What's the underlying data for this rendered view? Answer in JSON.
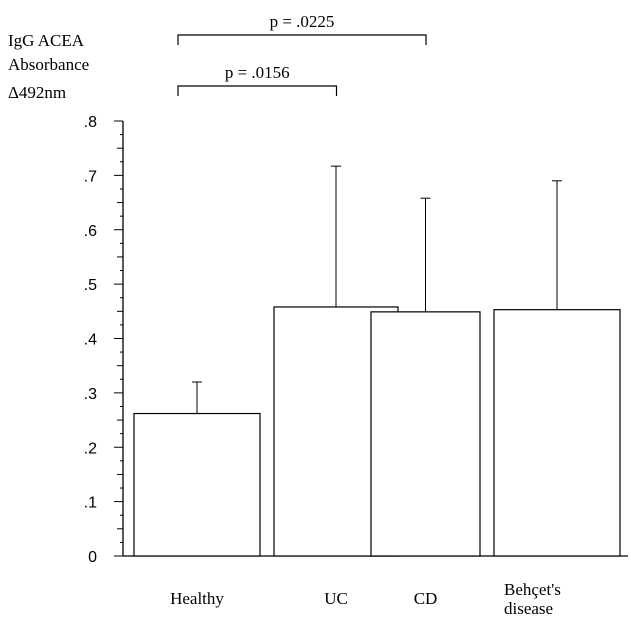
{
  "chart_data": {
    "type": "bar",
    "ylabel_lines": [
      "IgG ACEA",
      "Absorbance",
      "Δ492nm"
    ],
    "categories": [
      "Healthy",
      "UC",
      "CD",
      "Behçet's disease"
    ],
    "category_label_lines": [
      [
        "Healthy"
      ],
      [
        "UC"
      ],
      [
        "CD"
      ],
      [
        "Behçet's",
        "disease"
      ]
    ],
    "values": [
      0.262,
      0.458,
      0.449,
      0.453
    ],
    "error_upper": [
      0.32,
      0.717,
      0.658,
      0.69
    ],
    "ylim": [
      0,
      0.8
    ],
    "yticks": [
      0,
      0.1,
      0.2,
      0.3,
      0.4,
      0.5,
      0.6,
      0.7,
      0.8
    ],
    "ytick_labels": [
      "0",
      ".1",
      ".2",
      ".3",
      ".4",
      ".5",
      ".6",
      ".7",
      ".8"
    ],
    "annotations": [
      {
        "label": "p = .0225",
        "from": "Healthy",
        "to": "CD",
        "level": 2
      },
      {
        "label": "p = .0156",
        "from": "Healthy",
        "to": "UC",
        "level": 1
      }
    ],
    "grid": false,
    "legend": "none",
    "bar_fill": "#ffffff",
    "stroke": "#000000"
  }
}
